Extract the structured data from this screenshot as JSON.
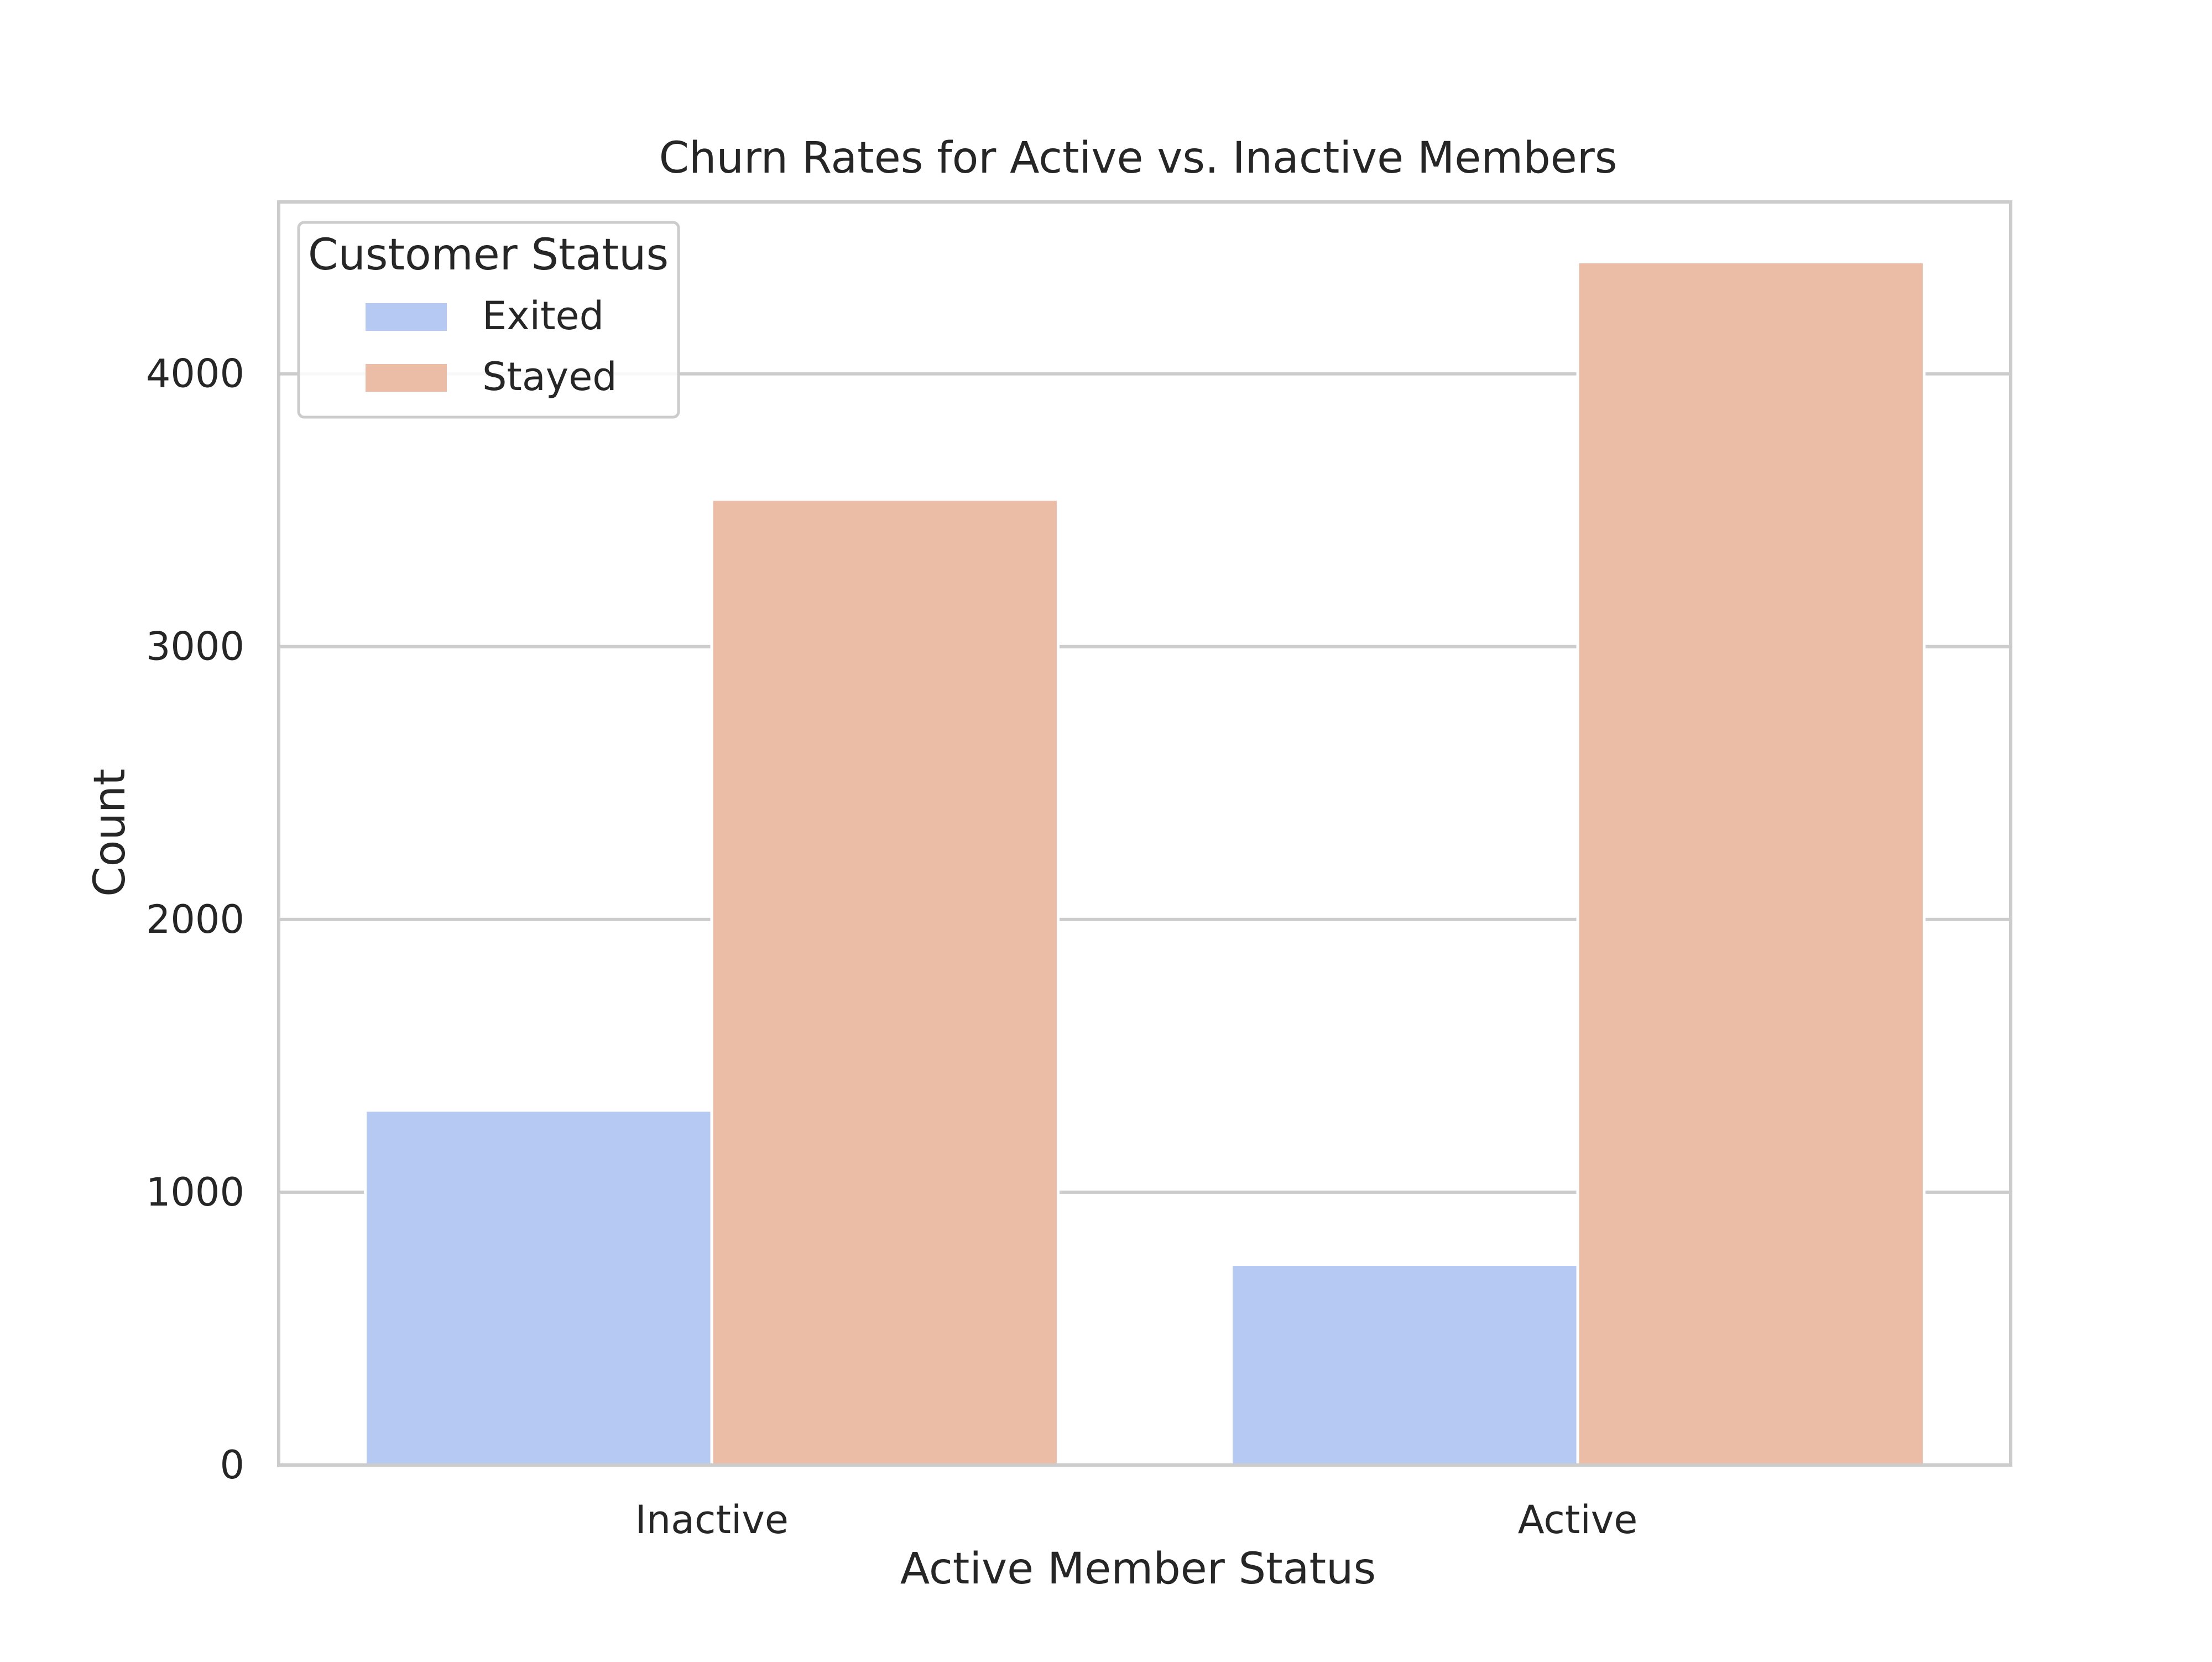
{
  "chart_data": {
    "type": "bar",
    "title": "Churn Rates for Active vs. Inactive Members",
    "xlabel": "Active Member Status",
    "ylabel": "Count",
    "categories": [
      "Inactive",
      "Active"
    ],
    "series": [
      {
        "name": "Exited",
        "color": "#b5c9f2",
        "values": [
          1300,
          735
        ]
      },
      {
        "name": "Stayed",
        "color": "#ebbca6",
        "values": [
          3540,
          4410
        ]
      }
    ],
    "ylim": [
      0,
      4630
    ],
    "yticks": [
      0,
      1000,
      2000,
      3000,
      4000
    ],
    "grid": true,
    "legend": {
      "title": "Customer Status",
      "placement": "top-left"
    }
  }
}
